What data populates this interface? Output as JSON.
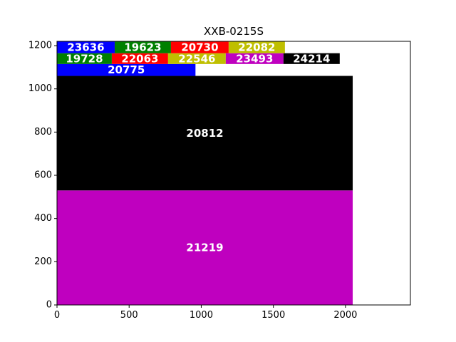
{
  "chart_data": {
    "type": "treemap",
    "title": "XXB-0215S",
    "xlabel": "",
    "ylabel": "",
    "xlim": [
      0,
      2450
    ],
    "ylim": [
      0,
      1220
    ],
    "xticks": [
      0,
      500,
      1000,
      1500,
      2000
    ],
    "yticks": [
      0,
      200,
      400,
      600,
      800,
      1000,
      1200
    ],
    "grid": false,
    "rects": [
      {
        "label": "21219",
        "x0": 0,
        "y0": 0,
        "x1": 2050,
        "y1": 530,
        "color": "#bf00bf"
      },
      {
        "label": "20812",
        "x0": 0,
        "y0": 530,
        "x1": 2050,
        "y1": 1060,
        "color": "#000000"
      },
      {
        "label": "20775",
        "x0": 0,
        "y0": 1060,
        "x1": 960,
        "y1": 1115,
        "color": "#0000ff"
      },
      {
        "label": "19728",
        "x0": 0,
        "y0": 1115,
        "x1": 380,
        "y1": 1165,
        "color": "#008000"
      },
      {
        "label": "22063",
        "x0": 380,
        "y0": 1115,
        "x1": 770,
        "y1": 1165,
        "color": "#ff0000"
      },
      {
        "label": "22546",
        "x0": 770,
        "y0": 1115,
        "x1": 1170,
        "y1": 1165,
        "color": "#bfbf00"
      },
      {
        "label": "23493",
        "x0": 1170,
        "y0": 1115,
        "x1": 1570,
        "y1": 1165,
        "color": "#bf00bf"
      },
      {
        "label": "24214",
        "x0": 1570,
        "y0": 1115,
        "x1": 1960,
        "y1": 1165,
        "color": "#000000"
      },
      {
        "label": "23636",
        "x0": 0,
        "y0": 1165,
        "x1": 400,
        "y1": 1220,
        "color": "#0000ff"
      },
      {
        "label": "19623",
        "x0": 400,
        "y0": 1165,
        "x1": 790,
        "y1": 1220,
        "color": "#008000"
      },
      {
        "label": "20730",
        "x0": 790,
        "y0": 1165,
        "x1": 1190,
        "y1": 1220,
        "color": "#ff0000"
      },
      {
        "label": "22082",
        "x0": 1190,
        "y0": 1165,
        "x1": 1580,
        "y1": 1220,
        "color": "#bfbf00"
      }
    ]
  }
}
